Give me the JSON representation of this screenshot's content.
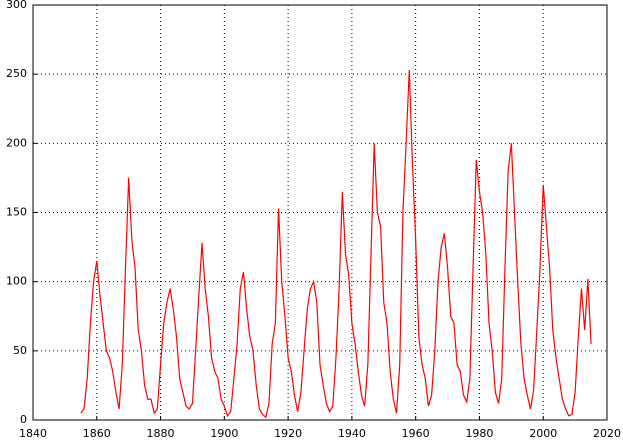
{
  "chart_data": {
    "type": "line",
    "x": [
      1855,
      1856,
      1857,
      1858,
      1859,
      1860,
      1861,
      1862,
      1863,
      1864,
      1865,
      1866,
      1867,
      1868,
      1869,
      1870,
      1871,
      1872,
      1873,
      1874,
      1875,
      1876,
      1877,
      1878,
      1879,
      1880,
      1881,
      1882,
      1883,
      1884,
      1885,
      1886,
      1887,
      1888,
      1889,
      1890,
      1891,
      1892,
      1893,
      1894,
      1895,
      1896,
      1897,
      1898,
      1899,
      1900,
      1901,
      1902,
      1903,
      1904,
      1905,
      1906,
      1907,
      1908,
      1909,
      1910,
      1911,
      1912,
      1913,
      1914,
      1915,
      1916,
      1917,
      1918,
      1919,
      1920,
      1921,
      1922,
      1923,
      1924,
      1925,
      1926,
      1927,
      1928,
      1929,
      1930,
      1931,
      1932,
      1933,
      1934,
      1935,
      1936,
      1937,
      1938,
      1939,
      1940,
      1941,
      1942,
      1943,
      1944,
      1945,
      1946,
      1947,
      1948,
      1949,
      1950,
      1951,
      1952,
      1953,
      1954,
      1955,
      1956,
      1957,
      1958,
      1959,
      1960,
      1961,
      1962,
      1963,
      1964,
      1965,
      1966,
      1967,
      1968,
      1969,
      1970,
      1971,
      1972,
      1973,
      1974,
      1975,
      1976,
      1977,
      1978,
      1979,
      1980,
      1981,
      1982,
      1983,
      1984,
      1985,
      1986,
      1987,
      1988,
      1989,
      1990,
      1991,
      1992,
      1993,
      1994,
      1995,
      1996,
      1997,
      1998,
      1999,
      2000,
      2001,
      2002,
      2003,
      2004,
      2005,
      2006,
      2007,
      2008,
      2009,
      2010,
      2011,
      2012,
      2013,
      2014,
      2015
    ],
    "series": [
      {
        "color": "#ff0000",
        "values": [
          5,
          8,
          30,
          70,
          100,
          115,
          90,
          70,
          50,
          45,
          35,
          20,
          8,
          40,
          110,
          175,
          130,
          110,
          65,
          50,
          25,
          15,
          15,
          5,
          8,
          40,
          70,
          85,
          95,
          80,
          60,
          30,
          20,
          10,
          8,
          12,
          50,
          90,
          128,
          95,
          75,
          45,
          35,
          30,
          15,
          10,
          3,
          6,
          30,
          55,
          95,
          107,
          80,
          60,
          50,
          25,
          8,
          4,
          2,
          12,
          55,
          70,
          153,
          100,
          75,
          45,
          35,
          18,
          6,
          20,
          50,
          80,
          95,
          100,
          85,
          40,
          25,
          12,
          6,
          10,
          45,
          95,
          165,
          120,
          105,
          70,
          55,
          35,
          18,
          10,
          40,
          120,
          200,
          150,
          140,
          85,
          70,
          35,
          15,
          5,
          40,
          150,
          200,
          253,
          185,
          130,
          60,
          40,
          30,
          10,
          18,
          50,
          100,
          125,
          135,
          110,
          75,
          70,
          40,
          35,
          18,
          13,
          30,
          110,
          188,
          165,
          150,
          120,
          70,
          50,
          20,
          12,
          30,
          110,
          180,
          200,
          150,
          100,
          55,
          30,
          18,
          8,
          22,
          65,
          110,
          170,
          140,
          110,
          65,
          45,
          30,
          15,
          8,
          3,
          4,
          20,
          60,
          95,
          65,
          102,
          55
        ]
      }
    ],
    "xlim": [
      1840,
      2020
    ],
    "xticks": [
      1840,
      1860,
      1880,
      1900,
      1920,
      1940,
      1960,
      1980,
      2000,
      2020
    ],
    "ylim": [
      0,
      300
    ],
    "yticks": [
      0,
      50,
      100,
      150,
      200,
      250,
      300
    ],
    "grid": true
  }
}
